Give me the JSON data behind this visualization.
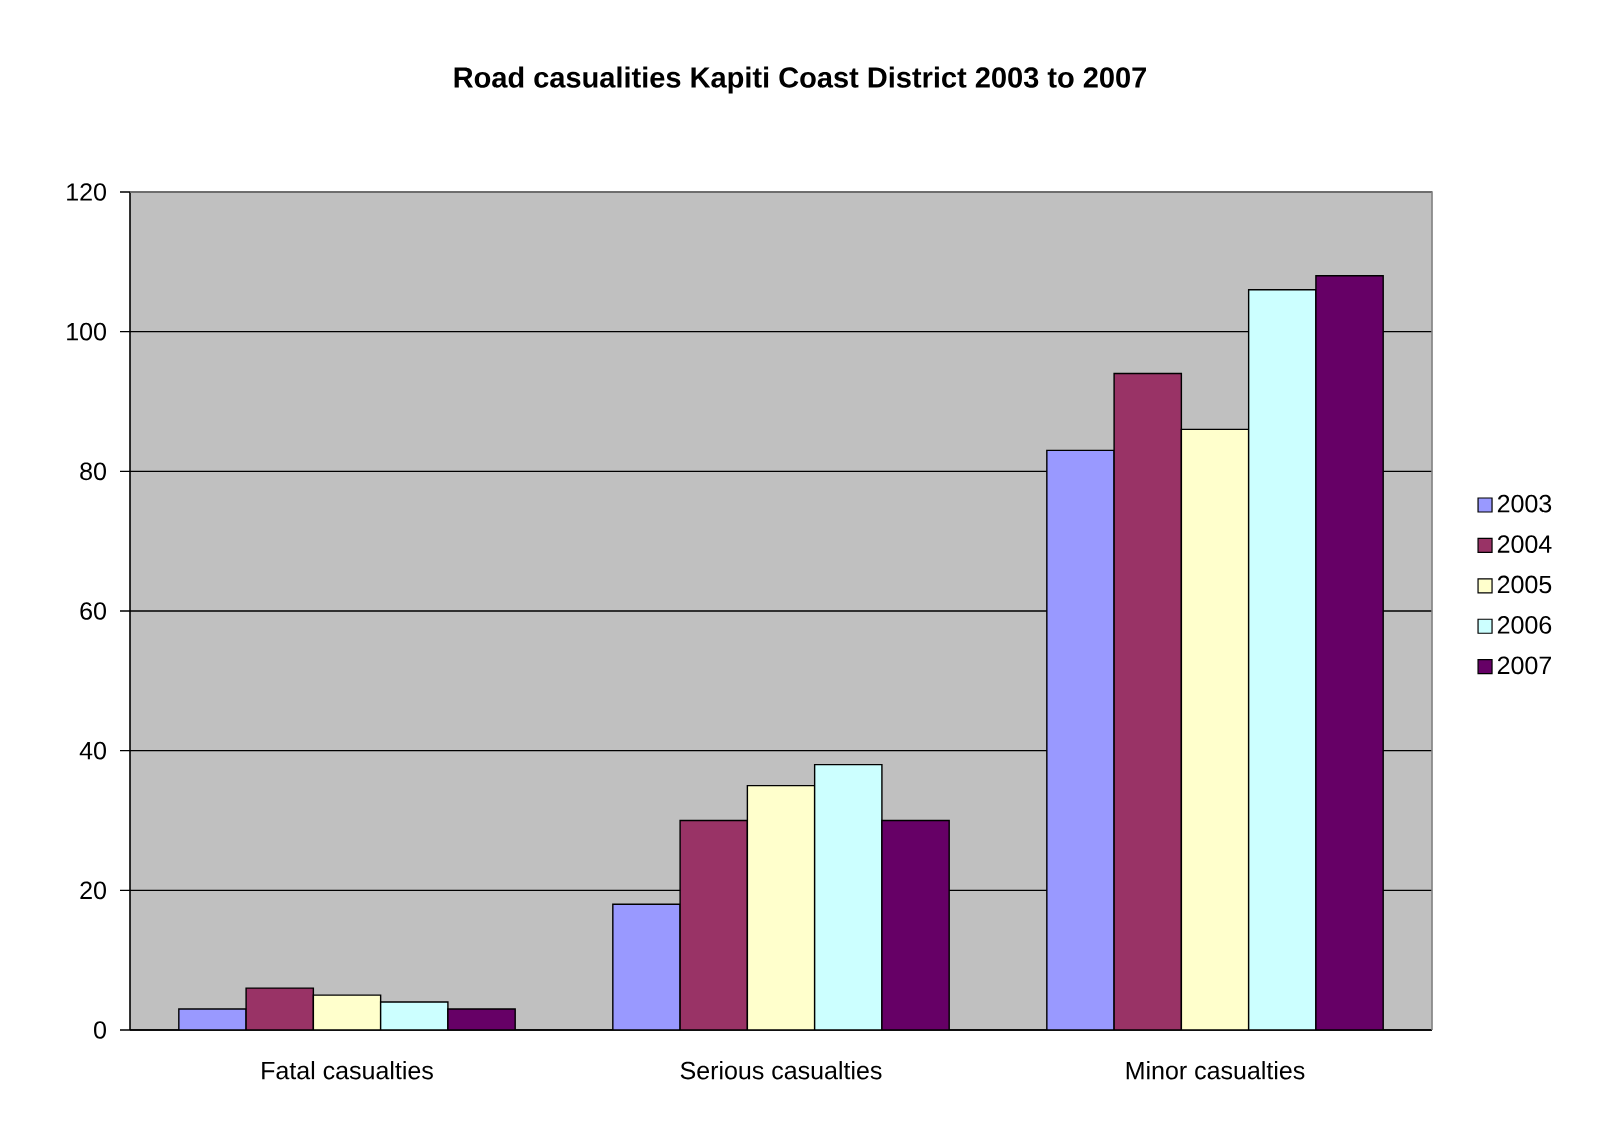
{
  "chart_data": {
    "type": "bar",
    "title": "Road casualities Kapiti Coast District 2003 to 2007",
    "categories": [
      "Fatal casualties",
      "Serious casualties",
      "Minor casualties"
    ],
    "series": [
      {
        "name": "2003",
        "color": "#9999ff",
        "values": [
          3,
          18,
          83
        ]
      },
      {
        "name": "2004",
        "color": "#993366",
        "values": [
          6,
          30,
          94
        ]
      },
      {
        "name": "2005",
        "color": "#ffffcc",
        "values": [
          5,
          35,
          86
        ]
      },
      {
        "name": "2006",
        "color": "#ccffff",
        "values": [
          4,
          38,
          106
        ]
      },
      {
        "name": "2007",
        "color": "#660066",
        "values": [
          3,
          30,
          108
        ]
      }
    ],
    "ylim": [
      0,
      120
    ],
    "yticks": [
      0,
      20,
      40,
      60,
      80,
      100,
      120
    ],
    "grid": "y",
    "legend": "right"
  }
}
